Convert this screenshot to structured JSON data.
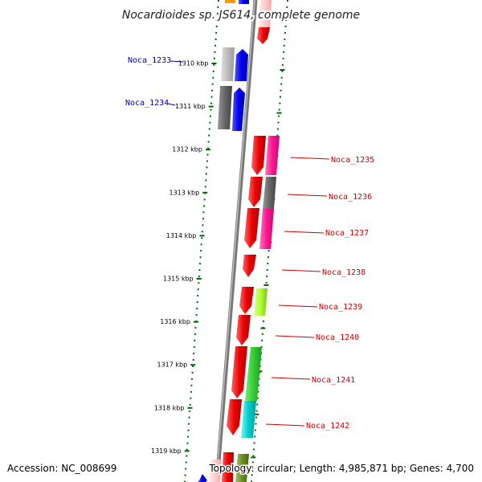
{
  "title": "Nocardioides sp. JS614, complete genome",
  "footer": {
    "accession": "Accession: NC_008699",
    "topology": "Topology: circular; Length: 4,985,871 bp; Genes: 4,700"
  },
  "ticks": [
    {
      "label": "1310 kbp",
      "kbp": 1310
    },
    {
      "label": "1311 kbp",
      "kbp": 1311
    },
    {
      "label": "1312 kbp",
      "kbp": 1312
    },
    {
      "label": "1313 kbp",
      "kbp": 1313
    },
    {
      "label": "1314 kbp",
      "kbp": 1314
    },
    {
      "label": "1315 kbp",
      "kbp": 1315
    },
    {
      "label": "1316 kbp",
      "kbp": 1316
    },
    {
      "label": "1317 kbp",
      "kbp": 1317
    },
    {
      "label": "1318 kbp",
      "kbp": 1318
    },
    {
      "label": "1319 kbp",
      "kbp": 1319
    }
  ],
  "labels_left": [
    {
      "name": "Noca_1233",
      "gene": "Noca_1233"
    },
    {
      "name": "Noca_1234",
      "gene": "Noca_1234"
    }
  ],
  "labels_right": [
    {
      "name": "Noca_1235",
      "gene": "Noca_1235"
    },
    {
      "name": "Noca_1236",
      "gene": "Noca_1236"
    },
    {
      "name": "Noca_1237",
      "gene": "Noca_1237"
    },
    {
      "name": "Noca_1238",
      "gene": "Noca_1238"
    },
    {
      "name": "Noca_1239",
      "gene": "Noca_1239"
    },
    {
      "name": "Noca_1240",
      "gene": "Noca_1240"
    },
    {
      "name": "Noca_1241",
      "gene": "Noca_1241"
    },
    {
      "name": "Noca_1242",
      "gene": "Noca_1242"
    }
  ],
  "colors": {
    "backbone": "#777777",
    "tick": "#006600",
    "label_left": "#0000aa",
    "label_right": "#cc0000",
    "forward_gene": "#ee0000",
    "reverse_gene": "#0000ee"
  }
}
